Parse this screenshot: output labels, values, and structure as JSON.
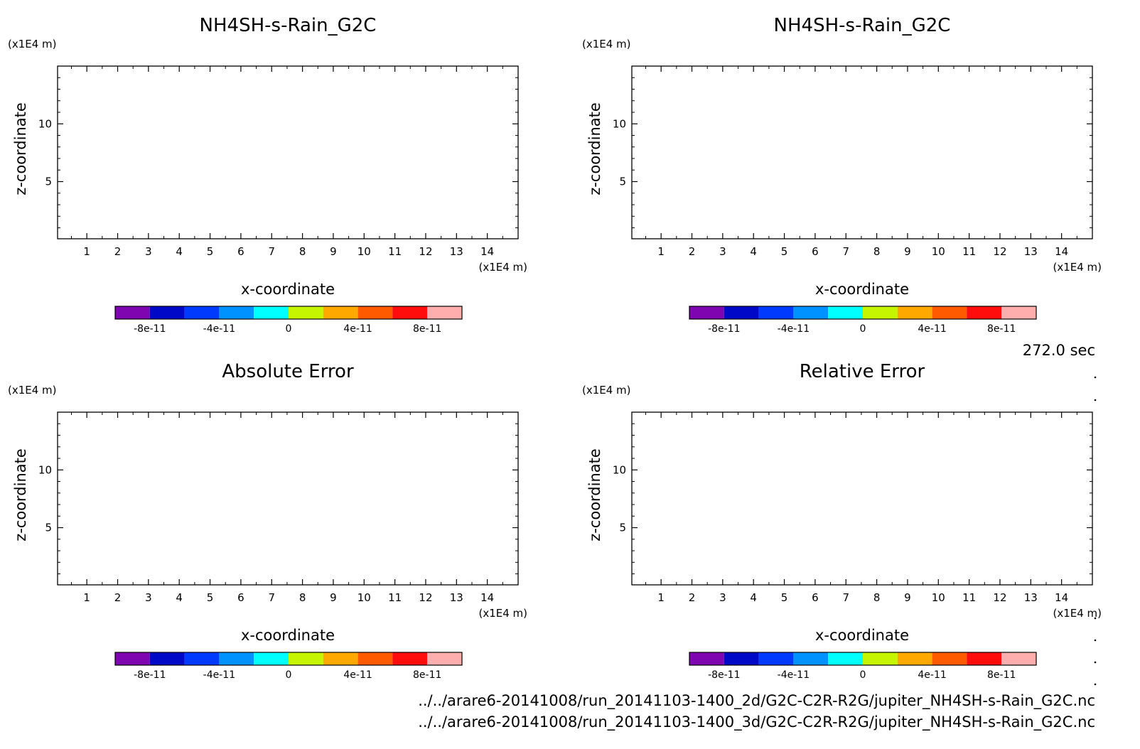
{
  "time_label": "272.0 sec",
  "file_paths": [
    "../../arare6-20141008/run_20141103-1400_2d/G2C-C2R-R2G/jupiter_NH4SH-s-Rain_G2C.nc",
    "../../arare6-20141008/run_20141103-1400_3d/G2C-C2R-R2G/jupiter_NH4SH-s-Rain_G2C.nc"
  ],
  "chart_data": [
    {
      "type": "heatmap",
      "title": "NH4SH-s-Rain_G2C",
      "xlabel": "x-coordinate",
      "ylabel": "z-coordinate",
      "x_unit": "(x1E4 m)",
      "y_unit": "(x1E4 m)",
      "xlim": [
        0.05,
        15.0
      ],
      "ylim": [
        0.05,
        15.0
      ],
      "x_ticks": [
        1,
        2,
        3,
        4,
        5,
        6,
        7,
        8,
        9,
        10,
        11,
        12,
        13,
        14
      ],
      "y_ticks": [
        5,
        10
      ],
      "values": [],
      "colorbar": {
        "levels": [
          -1e-10,
          -8e-11,
          -6e-11,
          -4e-11,
          -2e-11,
          0,
          2e-11,
          4e-11,
          6e-11,
          8e-11,
          1e-10
        ],
        "colors": [
          "#7e05b0",
          "#0008c8",
          "#0039ff",
          "#0092ff",
          "#00ffff",
          "#c6f500",
          "#ffa800",
          "#ff5a00",
          "#ff0c0c",
          "#ffadad"
        ],
        "tick_values": [
          -8e-11,
          -4e-11,
          0,
          4e-11,
          8e-11
        ],
        "tick_labels": [
          "-8e-11",
          "-4e-11",
          "0",
          "4e-11",
          "8e-11"
        ]
      }
    },
    {
      "type": "heatmap",
      "title": "NH4SH-s-Rain_G2C",
      "xlabel": "x-coordinate",
      "ylabel": "z-coordinate",
      "x_unit": "(x1E4 m)",
      "y_unit": "(x1E4 m)",
      "xlim": [
        0.05,
        15.0
      ],
      "ylim": [
        0.05,
        15.0
      ],
      "x_ticks": [
        1,
        2,
        3,
        4,
        5,
        6,
        7,
        8,
        9,
        10,
        11,
        12,
        13,
        14
      ],
      "y_ticks": [
        5,
        10
      ],
      "values": [],
      "colorbar": {
        "levels": [
          -1e-10,
          -8e-11,
          -6e-11,
          -4e-11,
          -2e-11,
          0,
          2e-11,
          4e-11,
          6e-11,
          8e-11,
          1e-10
        ],
        "colors": [
          "#7e05b0",
          "#0008c8",
          "#0039ff",
          "#0092ff",
          "#00ffff",
          "#c6f500",
          "#ffa800",
          "#ff5a00",
          "#ff0c0c",
          "#ffadad"
        ],
        "tick_values": [
          -8e-11,
          -4e-11,
          0,
          4e-11,
          8e-11
        ],
        "tick_labels": [
          "-8e-11",
          "-4e-11",
          "0",
          "4e-11",
          "8e-11"
        ]
      }
    },
    {
      "type": "heatmap",
      "title": "Absolute Error",
      "xlabel": "x-coordinate",
      "ylabel": "z-coordinate",
      "x_unit": "(x1E4 m)",
      "y_unit": "(x1E4 m)",
      "xlim": [
        0.05,
        15.0
      ],
      "ylim": [
        0.05,
        15.0
      ],
      "x_ticks": [
        1,
        2,
        3,
        4,
        5,
        6,
        7,
        8,
        9,
        10,
        11,
        12,
        13,
        14
      ],
      "y_ticks": [
        5,
        10
      ],
      "values": [],
      "colorbar": {
        "levels": [
          -1e-10,
          -8e-11,
          -6e-11,
          -4e-11,
          -2e-11,
          0,
          2e-11,
          4e-11,
          6e-11,
          8e-11,
          1e-10
        ],
        "colors": [
          "#7e05b0",
          "#0008c8",
          "#0039ff",
          "#0092ff",
          "#00ffff",
          "#c6f500",
          "#ffa800",
          "#ff5a00",
          "#ff0c0c",
          "#ffadad"
        ],
        "tick_values": [
          -8e-11,
          -4e-11,
          0,
          4e-11,
          8e-11
        ],
        "tick_labels": [
          "-8e-11",
          "-4e-11",
          "0",
          "4e-11",
          "8e-11"
        ]
      }
    },
    {
      "type": "heatmap",
      "title": "Relative Error",
      "xlabel": "x-coordinate",
      "ylabel": "z-coordinate",
      "x_unit": "(x1E4 m)",
      "y_unit": "(x1E4 m)",
      "xlim": [
        0.05,
        15.0
      ],
      "ylim": [
        0.05,
        15.0
      ],
      "x_ticks": [
        1,
        2,
        3,
        4,
        5,
        6,
        7,
        8,
        9,
        10,
        11,
        12,
        13,
        14
      ],
      "y_ticks": [
        5,
        10
      ],
      "values": [],
      "colorbar": {
        "levels": [
          -1e-10,
          -8e-11,
          -6e-11,
          -4e-11,
          -2e-11,
          0,
          2e-11,
          4e-11,
          6e-11,
          8e-11,
          1e-10
        ],
        "colors": [
          "#7e05b0",
          "#0008c8",
          "#0039ff",
          "#0092ff",
          "#00ffff",
          "#c6f500",
          "#ffa800",
          "#ff5a00",
          "#ff0c0c",
          "#ffadad"
        ],
        "tick_values": [
          -8e-11,
          -4e-11,
          0,
          4e-11,
          8e-11
        ],
        "tick_labels": [
          "-8e-11",
          "-4e-11",
          "0",
          "4e-11",
          "8e-11"
        ]
      }
    }
  ]
}
